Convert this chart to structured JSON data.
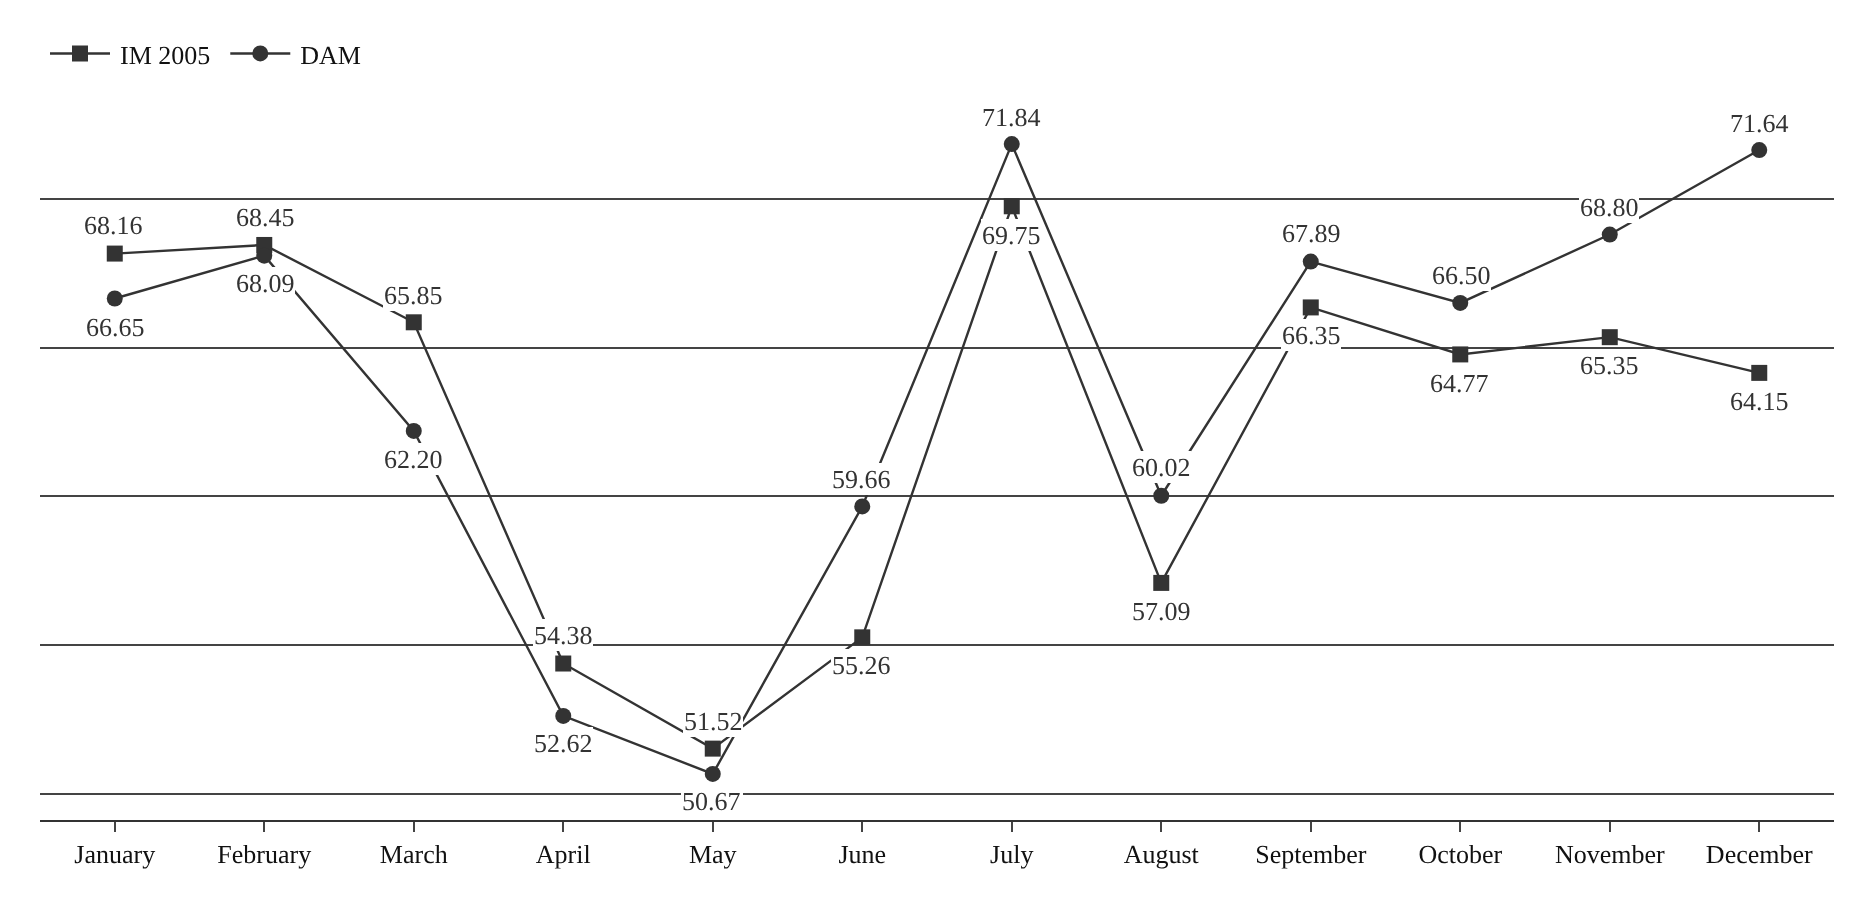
{
  "chart_data": {
    "type": "line",
    "categories": [
      "January",
      "February",
      "March",
      "April",
      "May",
      "June",
      "July",
      "August",
      "September",
      "October",
      "November",
      "December"
    ],
    "series": [
      {
        "name": "IM 2005",
        "color": "#333333",
        "marker": "square",
        "values": [
          68.16,
          68.45,
          65.85,
          54.38,
          51.52,
          55.26,
          69.75,
          57.09,
          66.35,
          64.77,
          65.35,
          64.15
        ],
        "value_labels": [
          "68.16",
          "68.45",
          "65.85",
          "54.38",
          "51.52",
          "55.26",
          "69.75",
          "57.09",
          "66.35",
          "64.77",
          "65.35",
          "64.15"
        ]
      },
      {
        "name": "DAM",
        "color": "#333333",
        "marker": "circle",
        "values": [
          66.65,
          68.09,
          62.2,
          52.62,
          50.67,
          59.66,
          71.84,
          60.02,
          67.89,
          66.5,
          68.8,
          71.64
        ],
        "value_labels": [
          "66.65",
          "68.09",
          "62.20",
          "52.62",
          "50.67",
          "59.66",
          "71.84",
          "60.02",
          "67.89",
          "66.50",
          "68.80",
          "71.64"
        ]
      }
    ],
    "yticks": [
      {
        "value": 50,
        "label": null
      },
      {
        "value": 55,
        "label": null
      },
      {
        "value": 60,
        "label": null
      },
      {
        "value": 65,
        "label": null
      },
      {
        "value": 70,
        "label": null
      }
    ],
    "grid": "y",
    "legend": "top left",
    "tick_labels": "x",
    "line_style": "solid"
  }
}
